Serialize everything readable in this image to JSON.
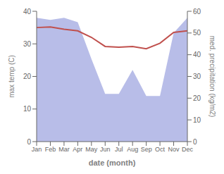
{
  "chart_data": {
    "type": "line",
    "xlabel": "date (month)",
    "ylabel": "max temp (C)",
    "y2label": "med. precipitation (kg/m2)",
    "categories": [
      "Jan",
      "Feb",
      "Mar",
      "Apr",
      "May",
      "Jun",
      "Jul",
      "Aug",
      "Sep",
      "Oct",
      "Nov",
      "Dec"
    ],
    "series": [
      {
        "type": "area",
        "axis": "y2",
        "color": "#b8bde8",
        "values": [
          57,
          56,
          57,
          55,
          38,
          22,
          22,
          33,
          21,
          21,
          50,
          57
        ]
      },
      {
        "type": "line",
        "color": "#c0504d",
        "values": [
          35.0,
          35.2,
          34.5,
          34.0,
          32.0,
          29.2,
          29.0,
          29.2,
          28.5,
          30.2,
          33.5,
          34.0
        ]
      }
    ],
    "ylim": [
      0,
      40
    ],
    "yticks": [
      0,
      10,
      20,
      30,
      40
    ],
    "y2lim": [
      0,
      60
    ],
    "y2ticks": [
      0,
      10,
      20,
      30,
      40,
      50,
      60
    ],
    "grid": false
  }
}
